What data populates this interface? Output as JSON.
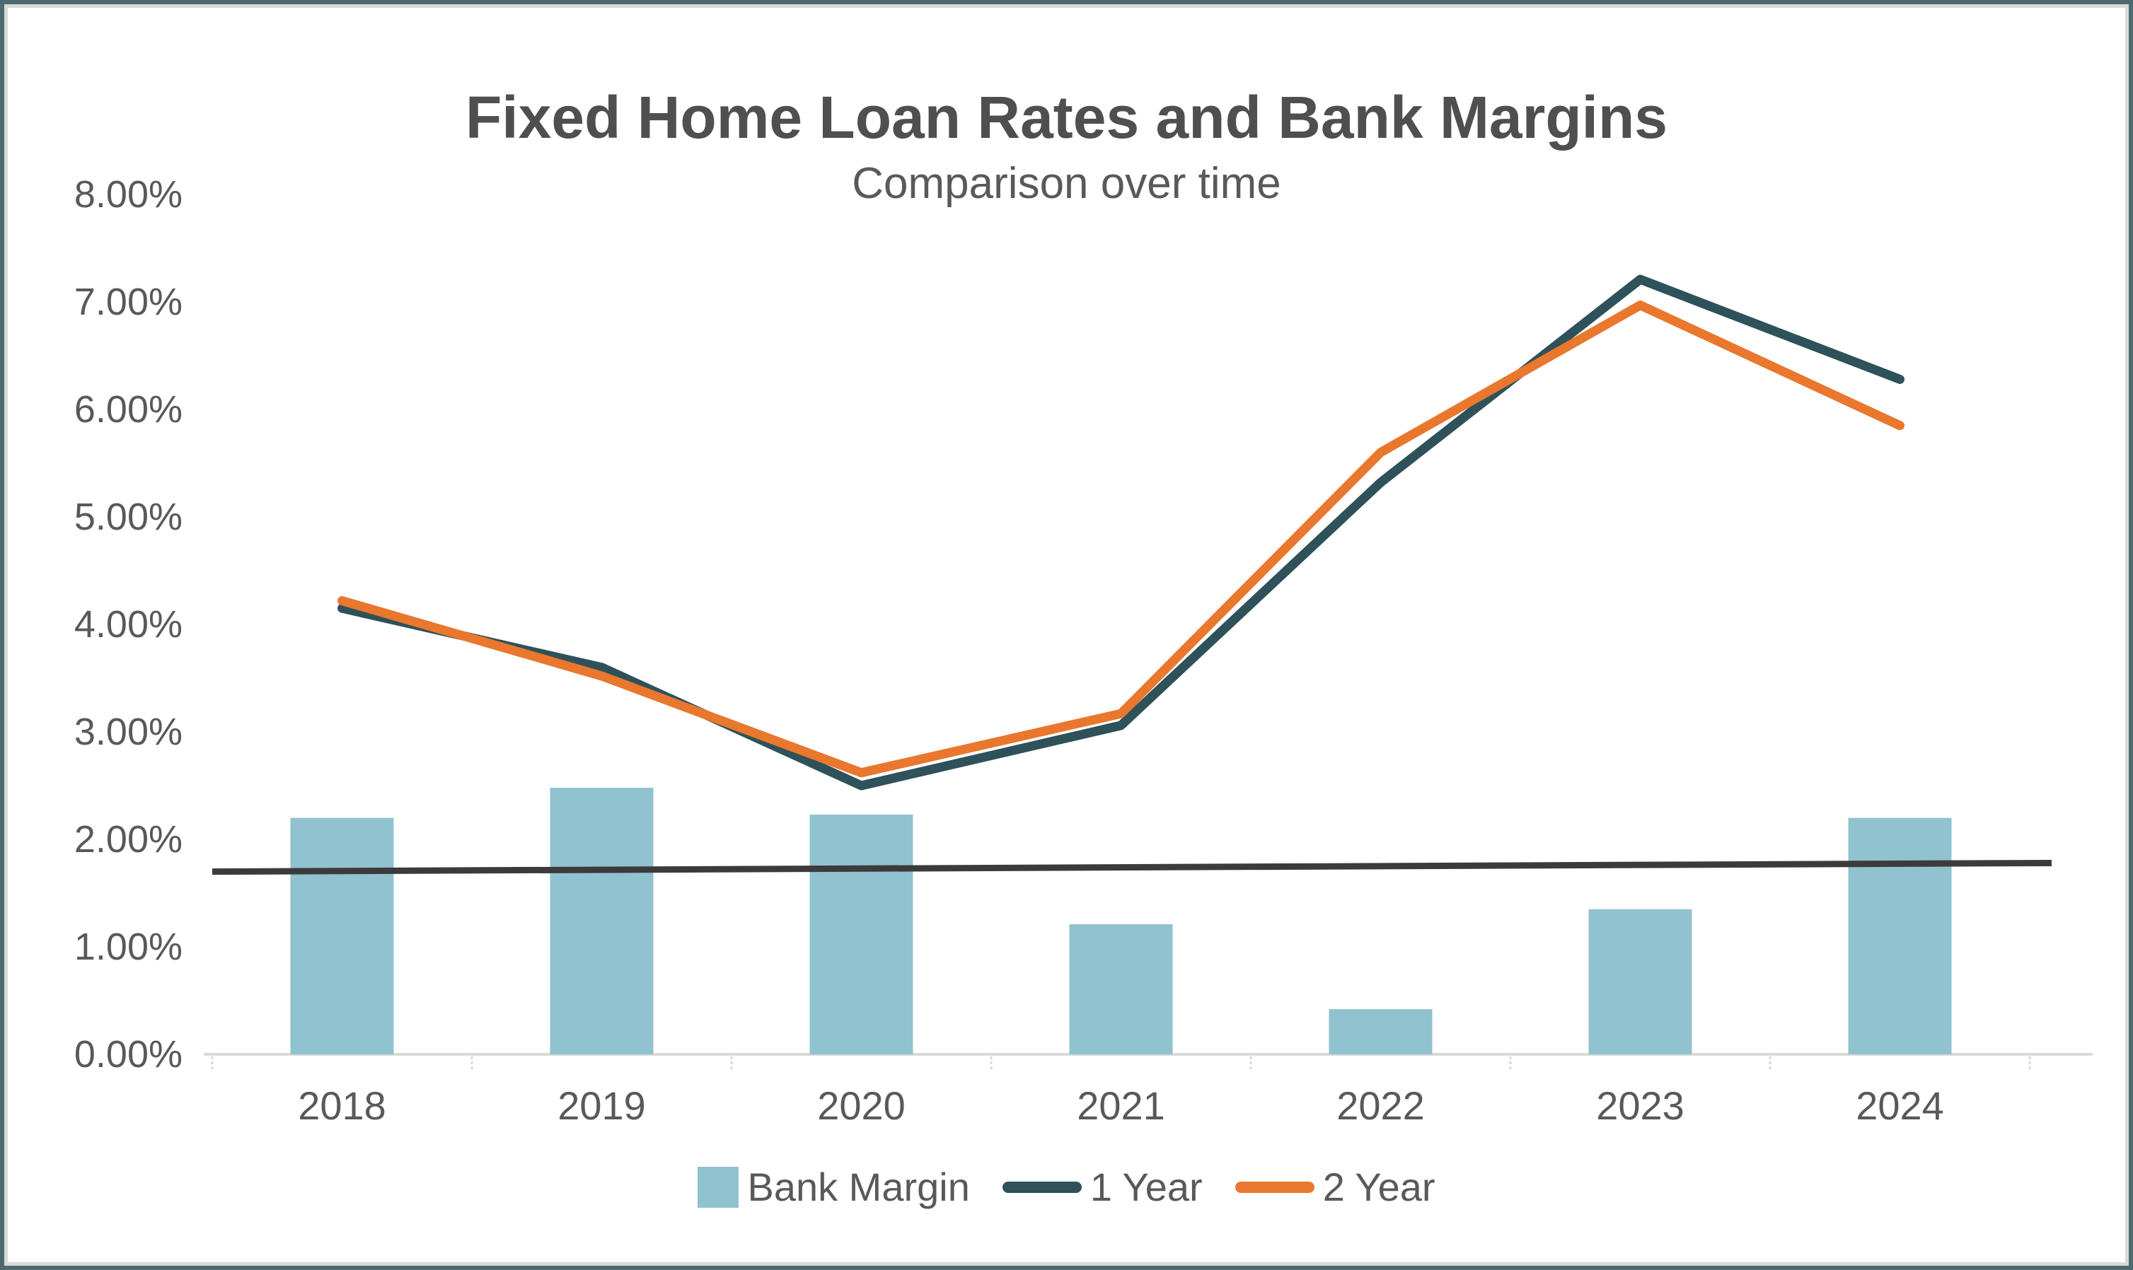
{
  "header": {
    "title": "Fixed Home Loan Rates and Bank Margins",
    "subtitle": "Comparison over time"
  },
  "chart_data": {
    "type": "bar",
    "subtype": "combo-bar-and-line",
    "categories": [
      "2018",
      "2019",
      "2020",
      "2021",
      "2022",
      "2023",
      "2024"
    ],
    "series": [
      {
        "name": "Bank Margin",
        "type": "bar",
        "color": "#91c2cf",
        "values": [
          2.2,
          2.48,
          2.23,
          1.21,
          0.42,
          1.35,
          2.2
        ]
      },
      {
        "name": "1 Year",
        "type": "line",
        "color": "#2e515a",
        "values": [
          4.15,
          3.6,
          2.5,
          3.06,
          5.32,
          7.21,
          6.28
        ]
      },
      {
        "name": "2 Year",
        "type": "line",
        "color": "#e9772e",
        "values": [
          4.22,
          3.52,
          2.62,
          3.17,
          5.6,
          6.97,
          5.85
        ]
      }
    ],
    "trendline": {
      "name": "Bank Margin trend",
      "color": "#3b3b3b",
      "start_value": 1.7,
      "end_value": 1.78
    },
    "title": "Fixed Home Loan Rates and Bank Margins",
    "xlabel": "",
    "ylabel": "",
    "y_axis": {
      "min": 0,
      "max": 8,
      "unit": "%",
      "tick_labels": [
        "8.00%",
        "7.00%",
        "6.00%",
        "5.00%",
        "4.00%",
        "3.00%",
        "2.00%",
        "1.00%",
        "0.00%"
      ]
    },
    "grid": "off",
    "legend_position": "bottom"
  },
  "legend": {
    "items": [
      {
        "label": "Bank Margin",
        "swatch": "square",
        "color": "#91c2cf"
      },
      {
        "label": "1 Year",
        "swatch": "line",
        "color": "#2e515a"
      },
      {
        "label": "2 Year",
        "swatch": "line",
        "color": "#e9772e"
      }
    ]
  },
  "frame": {
    "outer_border_color": "#4d6a70",
    "inner_border_color": "#d9d9d9",
    "axis_line_color": "#d9d9d9"
  }
}
